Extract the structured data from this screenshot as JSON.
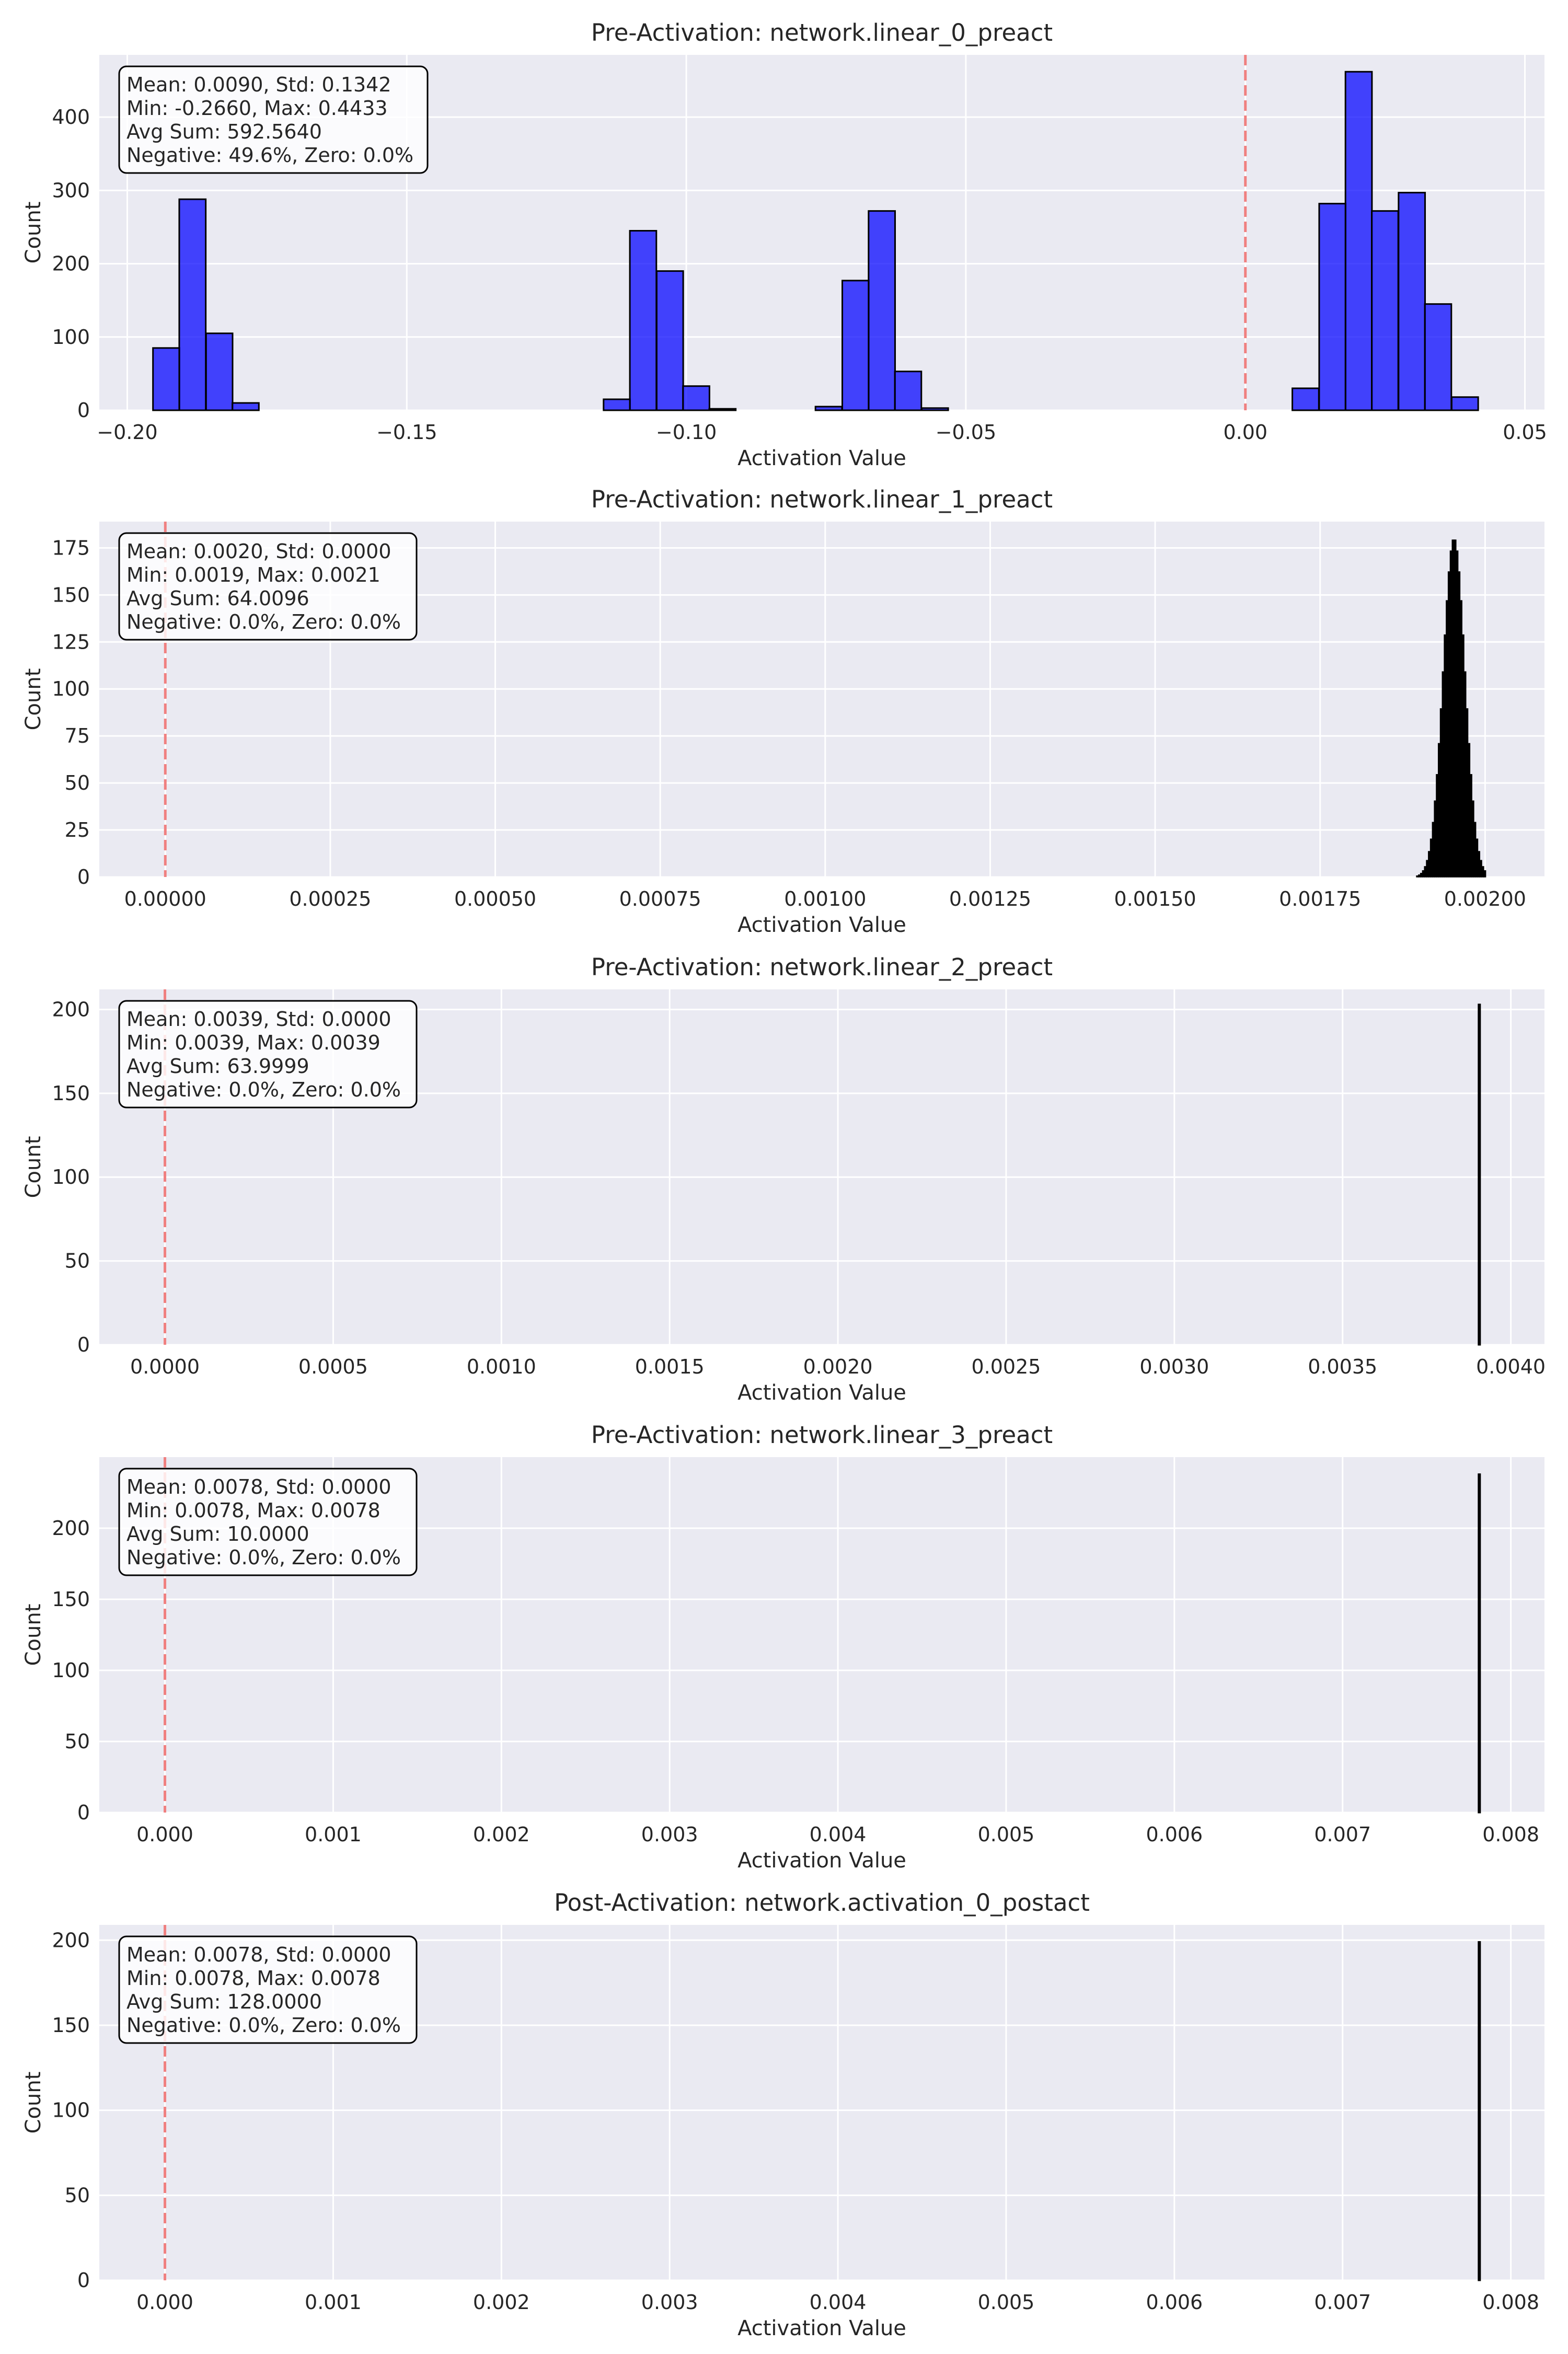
{
  "colors": {
    "plot_background": "#eaeaf2",
    "grid": "#ffffff",
    "zero_line": "#f08080",
    "stats_box_fill": "#ffffff",
    "stats_box_edge": "#000000",
    "bar_edge": "#000000"
  },
  "chart_data": [
    {
      "type": "bar",
      "title": "Pre-Activation: network.linear_0_preact",
      "xlabel": "Activation Value",
      "ylabel": "Count",
      "xlim": [
        -0.205,
        0.0535
      ],
      "ylim": [
        0,
        485
      ],
      "grid": true,
      "zero_line": 0.0,
      "bar_color": "#0000ff",
      "xticks": [
        -0.2,
        -0.15,
        -0.1,
        -0.05,
        0.0,
        0.05
      ],
      "xtick_labels": [
        "−0.20",
        "−0.15",
        "−0.10",
        "−0.05",
        "0.00",
        "0.05"
      ],
      "yticks": [
        0,
        100,
        200,
        300,
        400
      ],
      "ytick_labels": [
        "0",
        "100",
        "200",
        "300",
        "400"
      ],
      "bin_width": 0.00474,
      "bins": [
        {
          "x": -0.1954,
          "value": 85
        },
        {
          "x": -0.1907,
          "value": 288
        },
        {
          "x": -0.1859,
          "value": 105
        },
        {
          "x": -0.1812,
          "value": 10
        },
        {
          "x": -0.1148,
          "value": 15
        },
        {
          "x": -0.1101,
          "value": 245
        },
        {
          "x": -0.1053,
          "value": 190
        },
        {
          "x": -0.1006,
          "value": 33
        },
        {
          "x": -0.0959,
          "value": 2
        },
        {
          "x": -0.0769,
          "value": 5
        },
        {
          "x": -0.0721,
          "value": 177
        },
        {
          "x": -0.0674,
          "value": 272
        },
        {
          "x": -0.0627,
          "value": 53
        },
        {
          "x": -0.0579,
          "value": 3
        },
        {
          "x": 0.0084,
          "value": 30
        },
        {
          "x": 0.0132,
          "value": 282
        },
        {
          "x": 0.0179,
          "value": 462
        },
        {
          "x": 0.0226,
          "value": 272
        },
        {
          "x": 0.0274,
          "value": 297
        },
        {
          "x": 0.0321,
          "value": 145
        },
        {
          "x": 0.0369,
          "value": 18
        }
      ],
      "stats": [
        "Mean: 0.0090, Std: 0.1342",
        "Min: -0.2660, Max: 0.4433",
        "Avg Sum: 592.5640",
        "Negative: 49.6%, Zero: 0.0%"
      ]
    },
    {
      "type": "bar",
      "title": "Pre-Activation: network.linear_1_preact",
      "xlabel": "Activation Value",
      "ylabel": "Count",
      "xlim": [
        -0.0001,
        0.00209
      ],
      "ylim": [
        0,
        189
      ],
      "grid": true,
      "zero_line": 0.0,
      "bar_color": "#000000",
      "xticks": [
        0.0,
        0.00025,
        0.0005,
        0.00075,
        0.001,
        0.00125,
        0.0015,
        0.00175,
        0.002
      ],
      "xtick_labels": [
        "0.00000",
        "0.00025",
        "0.00050",
        "0.00075",
        "0.00100",
        "0.00125",
        "0.00150",
        "0.00175",
        "0.00200"
      ],
      "yticks": [
        0,
        25,
        50,
        75,
        100,
        125,
        150,
        175
      ],
      "ytick_labels": [
        "0",
        "25",
        "50",
        "75",
        "100",
        "125",
        "150",
        "175"
      ],
      "bin_width": 3e-06,
      "distribution": {
        "kind": "gaussian",
        "center": 0.001953,
        "sd": 1.65e-05,
        "peak": 180,
        "min_x": 0.001896,
        "max_x": 0.002
      },
      "stats": [
        "Mean: 0.0020, Std: 0.0000",
        "Min: 0.0019, Max: 0.0021",
        "Avg Sum: 64.0096",
        "Negative: 0.0%, Zero: 0.0%"
      ]
    },
    {
      "type": "bar",
      "title": "Pre-Activation: network.linear_2_preact",
      "xlabel": "Activation Value",
      "ylabel": "Count",
      "xlim": [
        -0.000195,
        0.0041
      ],
      "ylim": [
        0,
        212
      ],
      "grid": true,
      "zero_line": 0.0,
      "bar_color": "#000000",
      "xticks": [
        0.0,
        0.0005,
        0.001,
        0.0015,
        0.002,
        0.0025,
        0.003,
        0.0035,
        0.004
      ],
      "xtick_labels": [
        "0.0000",
        "0.0005",
        "0.0010",
        "0.0015",
        "0.0020",
        "0.0025",
        "0.0030",
        "0.0035",
        "0.0040"
      ],
      "yticks": [
        0,
        50,
        100,
        150,
        200
      ],
      "ytick_labels": [
        "0",
        "50",
        "100",
        "150",
        "200"
      ],
      "bin_width": 4e-06,
      "bins": [
        {
          "x": 0.003904,
          "value": 203
        }
      ],
      "stats": [
        "Mean: 0.0039, Std: 0.0000",
        "Min: 0.0039, Max: 0.0039",
        "Avg Sum: 63.9999",
        "Negative: 0.0%, Zero: 0.0%"
      ]
    },
    {
      "type": "bar",
      "title": "Pre-Activation: network.linear_3_preact",
      "xlabel": "Activation Value",
      "ylabel": "Count",
      "xlim": [
        -0.00039,
        0.0082
      ],
      "ylim": [
        0,
        250
      ],
      "grid": true,
      "zero_line": 0.0,
      "bar_color": "#000000",
      "xticks": [
        0.0,
        0.001,
        0.002,
        0.003,
        0.004,
        0.005,
        0.006,
        0.007,
        0.008
      ],
      "xtick_labels": [
        "0.000",
        "0.001",
        "0.002",
        "0.003",
        "0.004",
        "0.005",
        "0.006",
        "0.007",
        "0.008"
      ],
      "yticks": [
        0,
        50,
        100,
        150,
        200
      ],
      "ytick_labels": [
        "0",
        "50",
        "100",
        "150",
        "200"
      ],
      "bin_width": 8e-06,
      "bins": [
        {
          "x": 0.007808,
          "value": 238
        }
      ],
      "stats": [
        "Mean: 0.0078, Std: 0.0000",
        "Min: 0.0078, Max: 0.0078",
        "Avg Sum: 10.0000",
        "Negative: 0.0%, Zero: 0.0%"
      ]
    },
    {
      "type": "bar",
      "title": "Post-Activation: network.activation_0_postact",
      "xlabel": "Activation Value",
      "ylabel": "Count",
      "xlim": [
        -0.00039,
        0.0082
      ],
      "ylim": [
        0,
        209
      ],
      "grid": true,
      "zero_line": 0.0,
      "bar_color": "#000000",
      "xticks": [
        0.0,
        0.001,
        0.002,
        0.003,
        0.004,
        0.005,
        0.006,
        0.007,
        0.008
      ],
      "xtick_labels": [
        "0.000",
        "0.001",
        "0.002",
        "0.003",
        "0.004",
        "0.005",
        "0.006",
        "0.007",
        "0.008"
      ],
      "yticks": [
        0,
        50,
        100,
        150,
        200
      ],
      "ytick_labels": [
        "0",
        "50",
        "100",
        "150",
        "200"
      ],
      "bin_width": 8e-06,
      "bins": [
        {
          "x": 0.007808,
          "value": 199
        }
      ],
      "stats": [
        "Mean: 0.0078, Std: 0.0000",
        "Min: 0.0078, Max: 0.0078",
        "Avg Sum: 128.0000",
        "Negative: 0.0%, Zero: 0.0%"
      ]
    }
  ]
}
